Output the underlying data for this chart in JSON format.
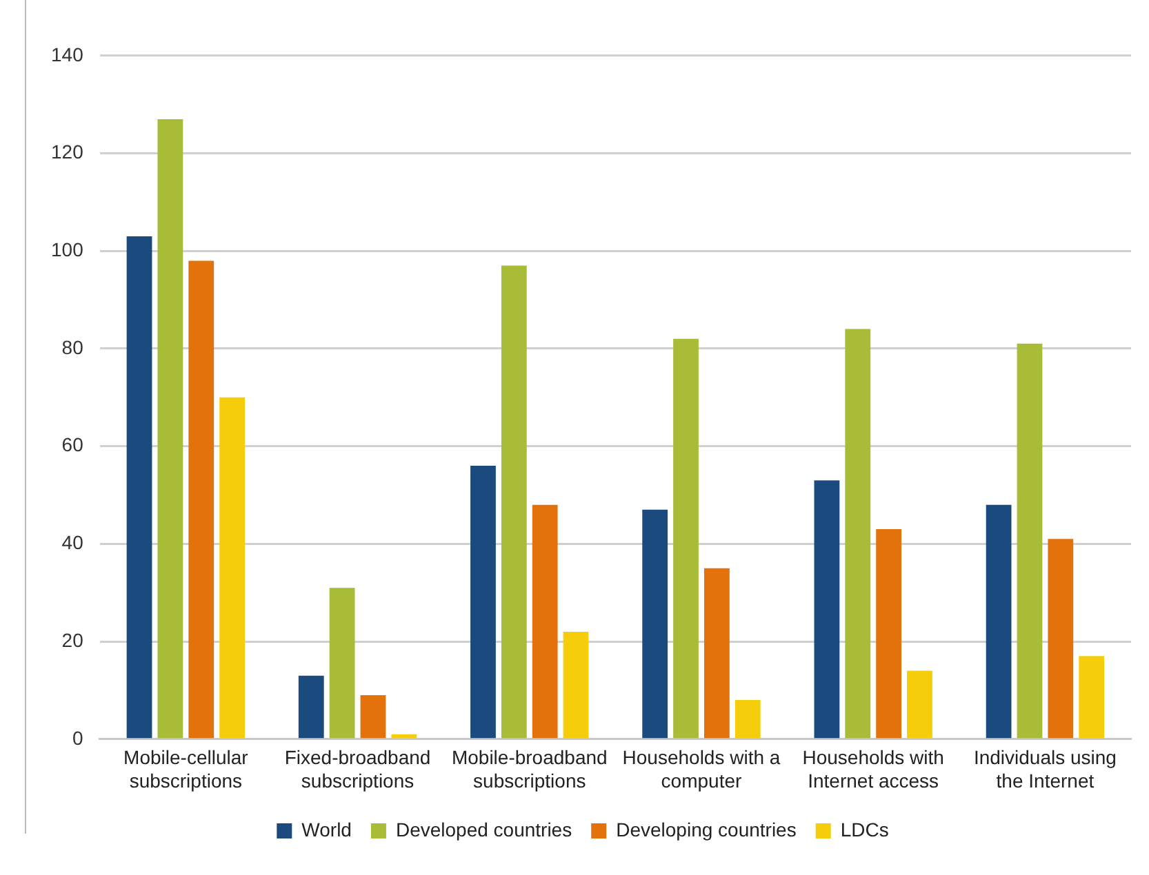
{
  "chart_data": {
    "type": "bar",
    "categories": [
      "Mobile-cellular subscriptions",
      "Fixed-broadband subscriptions",
      "Mobile-broadband subscriptions",
      "Households with a computer",
      "Households with Internet access",
      "Individuals using the Internet"
    ],
    "series": [
      {
        "name": "World",
        "color": "#1b4a7e",
        "values": [
          103,
          13,
          56,
          47,
          53,
          48
        ]
      },
      {
        "name": "Developed countries",
        "color": "#a8bc38",
        "values": [
          127,
          31,
          97,
          82,
          84,
          81
        ]
      },
      {
        "name": "Developing countries",
        "color": "#e3720c",
        "values": [
          98,
          9,
          48,
          35,
          43,
          41
        ]
      },
      {
        "name": "LDCs",
        "color": "#f5cd0a",
        "values": [
          70,
          1,
          22,
          8,
          14,
          17
        ]
      }
    ],
    "ylim": [
      0,
      140
    ],
    "yticks": [
      0,
      20,
      40,
      60,
      80,
      100,
      120,
      140
    ],
    "grid": "y",
    "legend": "bottom"
  }
}
